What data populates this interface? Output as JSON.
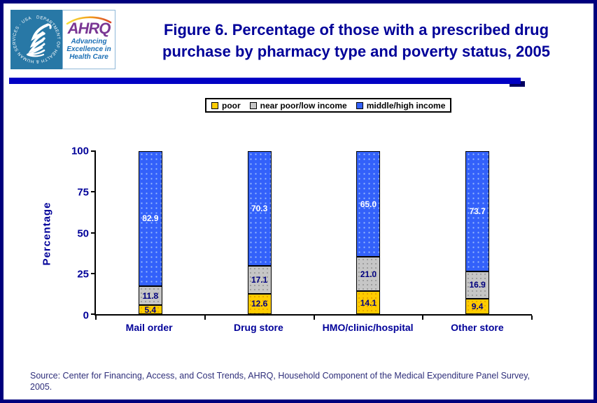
{
  "header": {
    "logo": {
      "seal_text": "DEPARTMENT OF HEALTH & HUMAN SERVICES · USA",
      "ahrq_acronym": "AHRQ",
      "tagline_line1": "Advancing",
      "tagline_line2": "Excellence in",
      "tagline_line3": "Health Care"
    },
    "title_line1": "Figure 6. Percentage of those with a prescribed drug",
    "title_line2": "purchase by pharmacy type and poverty status, 2005"
  },
  "chart_data": {
    "type": "bar",
    "stacked": true,
    "title": "Figure 6. Percentage of those with a prescribed drug purchase by pharmacy type and poverty status, 2005",
    "categories": [
      "Mail order",
      "Drug store",
      "HMO/clinic/hospital",
      "Other store"
    ],
    "series": [
      {
        "name": "poor",
        "color": "#ffcc00",
        "values": [
          5.4,
          12.6,
          14.1,
          9.4
        ],
        "labels": [
          "5.4",
          "12.6",
          "14.1",
          "9.4"
        ]
      },
      {
        "name": "near poor/low income",
        "color": "#c6c6c6",
        "values": [
          11.8,
          17.1,
          21.0,
          16.9
        ],
        "labels": [
          "11.8",
          "17.1",
          "21.0",
          "16.9"
        ]
      },
      {
        "name": "middle/high income",
        "color": "#3361fa",
        "values": [
          82.9,
          70.3,
          65.0,
          73.7
        ],
        "labels": [
          "82.9",
          "70.3",
          "65.0",
          "73.7"
        ]
      }
    ],
    "xlabel": "",
    "ylabel": "Percentage",
    "ylim": [
      0,
      100
    ],
    "yticks": [
      "0",
      "25",
      "50",
      "75",
      "100"
    ],
    "grid": false,
    "legend_position": "top"
  },
  "source_line1": "Source: Center for Financing, Access, and Cost Trends, AHRQ, Household Component of the Medical Expenditure Panel Survey,",
  "source_line2": "2005.",
  "colors": {
    "page_border": "#00007d",
    "title_text": "#000099",
    "divider_bar": "#0000c4",
    "divider_shadow": "#000060",
    "axis_text": "#000099",
    "value_label_dark": "#000080",
    "value_label_light": "#ffffff",
    "hhs_seal_bg": "#2878a6",
    "ahrq_purple": "#7a3794",
    "ahrq_blue": "#1b6fb5",
    "source_text": "#2e2e7a"
  }
}
